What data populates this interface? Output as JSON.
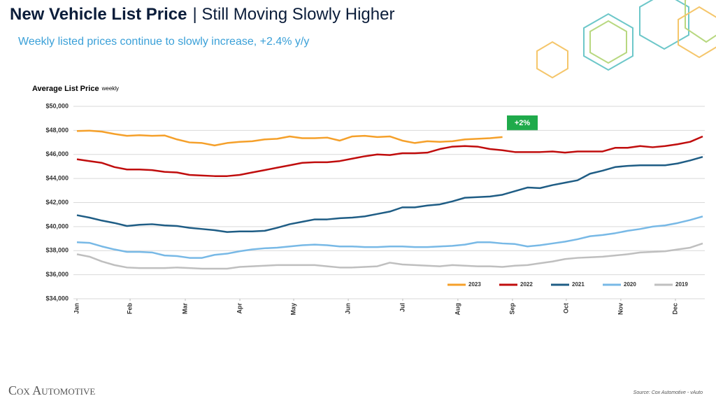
{
  "chart_data": {
    "type": "line",
    "title": "New Vehicle List Price",
    "title_suffix": "| Still Moving Slowly Higher",
    "subtitle": "Weekly listed prices continue to slowly increase, +2.4% y/y",
    "y_label": "Average List Price",
    "y_label_note": "weekly",
    "annotation": "+2%",
    "logo": "Cox Automotive",
    "source": "Source: Cox Automotive - vAuto",
    "xlim": [
      0,
      50
    ],
    "xticks": [
      {
        "value": 0,
        "label": "Jan"
      },
      {
        "value": 4.25,
        "label": "Feb"
      },
      {
        "value": 8.66,
        "label": "Mar"
      },
      {
        "value": 13.02,
        "label": "Apr"
      },
      {
        "value": 17.32,
        "label": "May"
      },
      {
        "value": 21.68,
        "label": "Jun"
      },
      {
        "value": 26.03,
        "label": "Jul"
      },
      {
        "value": 30.44,
        "label": "Aug"
      },
      {
        "value": 34.8,
        "label": "Sep"
      },
      {
        "value": 39.1,
        "label": "Oct"
      },
      {
        "value": 43.46,
        "label": "Nov"
      },
      {
        "value": 47.82,
        "label": "Dec"
      }
    ],
    "ylim": [
      34000,
      50000
    ],
    "yticks": [
      {
        "value": 34000,
        "label": "$34,000"
      },
      {
        "value": 36000,
        "label": "$36,000"
      },
      {
        "value": 38000,
        "label": "$38,000"
      },
      {
        "value": 40000,
        "label": "$40,000"
      },
      {
        "value": 42000,
        "label": "$42,000"
      },
      {
        "value": 44000,
        "label": "$44,000"
      },
      {
        "value": 46000,
        "label": "$46,000"
      },
      {
        "value": 48000,
        "label": "$48,000"
      },
      {
        "value": 50000,
        "label": "$50,000"
      }
    ],
    "grid": true,
    "legend": "lower right",
    "series": [
      {
        "name": "2023",
        "color": "#f5a02a",
        "values": [
          47950,
          47980,
          47900,
          47700,
          47550,
          47600,
          47550,
          47580,
          47250,
          47000,
          46950,
          46750,
          46950,
          47050,
          47100,
          47250,
          47300,
          47500,
          47350,
          47350,
          47400,
          47150,
          47500,
          47550,
          47450,
          47500,
          47150,
          46950,
          47100,
          47050,
          47100,
          47250,
          47300,
          47350,
          47450
        ]
      },
      {
        "name": "2022",
        "color": "#c00d0d",
        "values": [
          45600,
          45450,
          45300,
          44950,
          44750,
          44750,
          44700,
          44550,
          44500,
          44300,
          44250,
          44200,
          44200,
          44300,
          44500,
          44700,
          44900,
          45100,
          45300,
          45350,
          45350,
          45450,
          45650,
          45850,
          46000,
          45950,
          46100,
          46100,
          46150,
          46450,
          46650,
          46700,
          46650,
          46450,
          46350,
          46200,
          46200,
          46200,
          46250,
          46150,
          46250,
          46250,
          46250,
          46550,
          46550,
          46700,
          46600,
          46700,
          46850,
          47050,
          47500
        ]
      },
      {
        "name": "2021",
        "color": "#1f5d85",
        "values": [
          40950,
          40750,
          40500,
          40300,
          40050,
          40150,
          40200,
          40100,
          40050,
          39900,
          39800,
          39700,
          39550,
          39600,
          39600,
          39650,
          39900,
          40200,
          40400,
          40600,
          40600,
          40700,
          40750,
          40850,
          41050,
          41250,
          41600,
          41600,
          41750,
          41850,
          42100,
          42400,
          42450,
          42500,
          42650,
          42950,
          43250,
          43200,
          43450,
          43650,
          43850,
          44400,
          44650,
          44950,
          45050,
          45100,
          45100,
          45100,
          45250,
          45500,
          45800
        ]
      },
      {
        "name": "2020",
        "color": "#78b9e6",
        "values": [
          38700,
          38650,
          38350,
          38100,
          37900,
          37900,
          37850,
          37600,
          37550,
          37400,
          37400,
          37650,
          37750,
          37950,
          38100,
          38200,
          38250,
          38350,
          38450,
          38500,
          38450,
          38350,
          38350,
          38300,
          38300,
          38350,
          38350,
          38300,
          38300,
          38350,
          38400,
          38500,
          38700,
          38700,
          38600,
          38550,
          38350,
          38450,
          38600,
          38750,
          38950,
          39200,
          39300,
          39450,
          39650,
          39800,
          40000,
          40100,
          40300,
          40550,
          40850
        ]
      },
      {
        "name": "2019",
        "color": "#bfbfbf",
        "values": [
          37700,
          37500,
          37100,
          36800,
          36600,
          36550,
          36550,
          36550,
          36600,
          36550,
          36500,
          36500,
          36500,
          36650,
          36700,
          36750,
          36800,
          36800,
          36800,
          36800,
          36700,
          36600,
          36600,
          36650,
          36700,
          37000,
          36850,
          36800,
          36750,
          36700,
          36800,
          36750,
          36700,
          36700,
          36650,
          36750,
          36800,
          36950,
          37100,
          37300,
          37400,
          37450,
          37500,
          37600,
          37700,
          37850,
          37900,
          37950,
          38100,
          38250,
          38600
        ]
      }
    ]
  }
}
